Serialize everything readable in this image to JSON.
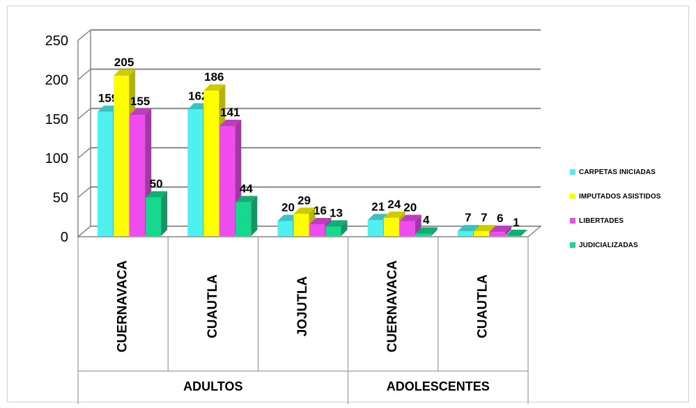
{
  "chart_data": {
    "type": "bar",
    "style": "3d-clustered",
    "group_labels": [
      "ADULTOS",
      "ADOLESCENTES"
    ],
    "groups": [
      {
        "label": "ADULTOS",
        "categories": [
          "CUERNAVACA",
          "CUAUTLA",
          "JOJUTLA"
        ]
      },
      {
        "label": "ADOLESCENTES",
        "categories": [
          "CUERNAVACA",
          "CUAUTLA"
        ]
      }
    ],
    "categories": [
      "CUERNAVACA",
      "CUAUTLA",
      "JOJUTLA",
      "CUERNAVACA",
      "CUAUTLA"
    ],
    "series": [
      {
        "name": "CARPETAS INICIADAS",
        "color": "#4ef0f0",
        "values": [
          159,
          162,
          20,
          21,
          7
        ]
      },
      {
        "name": "IMPUTADOS ASISTIDOS",
        "color": "#ffff00",
        "values": [
          205,
          186,
          29,
          24,
          7
        ]
      },
      {
        "name": "LIBERTADES",
        "color": "#ee4cee",
        "values": [
          155,
          141,
          16,
          20,
          6
        ]
      },
      {
        "name": "JUDICIALIZADAS",
        "color": "#17d88f",
        "values": [
          50,
          44,
          13,
          4,
          1
        ]
      }
    ],
    "ylim": [
      0,
      250
    ],
    "yticks": [
      "0",
      "50",
      "100",
      "150",
      "200",
      "250"
    ],
    "grid": true,
    "legend": "right",
    "title": "",
    "xlabel": "",
    "ylabel": ""
  }
}
